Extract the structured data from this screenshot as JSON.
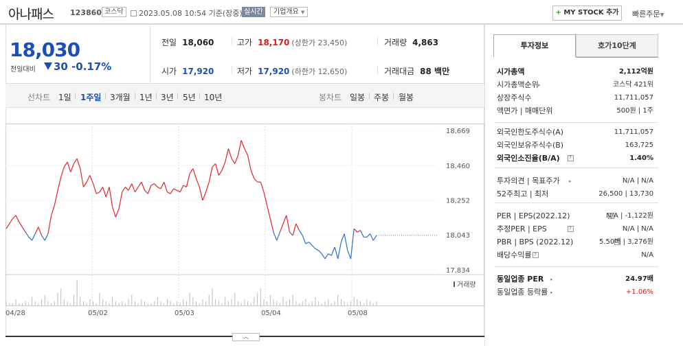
{
  "header": {
    "name": "아나패스",
    "code": "123860",
    "market": "코스닥",
    "datetime": "2023.05.08 10:54 기준(장중)",
    "realtime": "실시간",
    "corp_info": "기업개요",
    "mystock": "MY STOCK 추가",
    "quick_order": "빠른주문"
  },
  "price": {
    "current": "18,030",
    "compare_label": "전일대비",
    "change": "30",
    "change_pct": "-0.17%"
  },
  "stats": {
    "prev_label": "전일",
    "prev": "18,060",
    "high_label": "고가",
    "high": "18,170",
    "upper": "(상한가 23,450)",
    "volume_label": "거래량",
    "volume": "4,863",
    "open_label": "시가",
    "open": "17,920",
    "low_label": "저가",
    "low": "17,920",
    "lower": "(하한가 12,650)",
    "amount_label": "거래대금",
    "amount": "88 백만"
  },
  "toolbar": {
    "line_label": "선차트",
    "periods": [
      "1일",
      "1주일",
      "3개월",
      "1년",
      "3년",
      "5년",
      "10년"
    ],
    "selected": "1주일",
    "candle_label": "봉차트",
    "candles": [
      "일봉",
      "주봉",
      "월봉"
    ]
  },
  "chart_data": {
    "type": "line",
    "x_labels": [
      "04/28",
      "05/02",
      "05/03",
      "05/04",
      "05/08"
    ],
    "y_ticks": [
      18669,
      18460,
      18252,
      18043,
      17834
    ],
    "ylim": [
      17800,
      18700
    ],
    "reference_price": 18060,
    "up_color": "#e0242c",
    "down_color": "#2a6fc9",
    "volume_label": "거래량",
    "series": [
      {
        "values": [
          18080,
          18110,
          18140,
          18160,
          18120,
          18090,
          18060,
          18030,
          18010,
          18050,
          18090,
          18040,
          18010,
          18050,
          18160,
          18220,
          18310,
          18390,
          18450,
          18480,
          18420,
          18470,
          18500,
          18440,
          18330,
          18360,
          18400,
          18350,
          18290,
          18300,
          18330,
          18270,
          18330,
          18210,
          18150,
          18200,
          18300,
          18330,
          18310,
          18350,
          18300,
          18330,
          18360,
          18310,
          18290,
          18340,
          18350,
          18330,
          18320,
          18360,
          18300,
          18290,
          18320,
          18310,
          18300,
          18340,
          18330,
          18410,
          18440,
          18380,
          18330,
          18250,
          18300,
          18360,
          18450,
          18470,
          18400,
          18430,
          18480,
          18560,
          18500,
          18470,
          18520,
          18610,
          18560,
          18520,
          18430,
          18380,
          18360,
          18360,
          18300,
          18220,
          18140,
          18060,
          18010,
          18060,
          18110,
          18160,
          18060,
          18040,
          18110,
          18070,
          18040,
          17990,
          18000,
          17980,
          17960,
          17950,
          17930,
          17900,
          17930,
          17920,
          17970,
          17900,
          18000,
          18050,
          17950,
          17900,
          18080,
          18060,
          18070,
          18030,
          18030,
          18050,
          18010,
          18040
        ]
      }
    ],
    "volumes": [
      2,
      1,
      1,
      3,
      1,
      1,
      2,
      1,
      4,
      2,
      1,
      3,
      5,
      2,
      1,
      2,
      6,
      8,
      3,
      2,
      1,
      5,
      12,
      4,
      2,
      1,
      3,
      2,
      1,
      6,
      3,
      2,
      1,
      4,
      2,
      1,
      2,
      1,
      3,
      5,
      2,
      1,
      3,
      2,
      1,
      1,
      2,
      4,
      2,
      1,
      3,
      2,
      1,
      2,
      1,
      3,
      2,
      6,
      4,
      2,
      1,
      3,
      2,
      5,
      8,
      3,
      2,
      1,
      4,
      2,
      3,
      6,
      2,
      1,
      3,
      2,
      1,
      4,
      6,
      8,
      3,
      2,
      5,
      3,
      2,
      1,
      4,
      2,
      3,
      5,
      2,
      1,
      2,
      3,
      1,
      2,
      4,
      2,
      1,
      2,
      3,
      1,
      2,
      5,
      3,
      2,
      1,
      2,
      4,
      3,
      2,
      1,
      3,
      2,
      1,
      2
    ]
  },
  "panel": {
    "tab_active": "투자정보",
    "tab_other": "호가10단계",
    "rows1": [
      {
        "label": "시가총액",
        "value": "2,112억원"
      },
      {
        "label": "시가총액순위",
        "value": "코스닥 421위"
      },
      {
        "label": "상장주식수",
        "value": "11,711,057"
      },
      {
        "label": "액면가 | 매매단위",
        "value": "500원 | 1주"
      }
    ],
    "rows2": [
      {
        "label": "외국인한도주식수(A)",
        "value": "11,711,057"
      },
      {
        "label": "외국인보유주식수(B)",
        "value": "163,725"
      },
      {
        "label": "외국인소진율(B/A)",
        "value": "1.40%"
      }
    ],
    "rows3": [
      {
        "label": "투자의견 | 목표주가",
        "value": "N/A | N/A"
      },
      {
        "label": "52주최고 | 최저",
        "value": "26,500 | 13,730"
      }
    ],
    "rows4": [
      {
        "label": "PER | EPS(2022.12)",
        "value": "N/A | -1,122원"
      },
      {
        "label": "추정PER | EPS",
        "value": "N/A | N/A"
      },
      {
        "label": "PBR | BPS (2022.12)",
        "value": "5.50배 | 3,276원"
      },
      {
        "label": "배당수익률",
        "value": "N/A"
      }
    ],
    "rows5": [
      {
        "label": "동일업종 PER",
        "value": "24.97배"
      },
      {
        "label": "동일업종 등락률",
        "value": "+1.06%"
      }
    ]
  }
}
